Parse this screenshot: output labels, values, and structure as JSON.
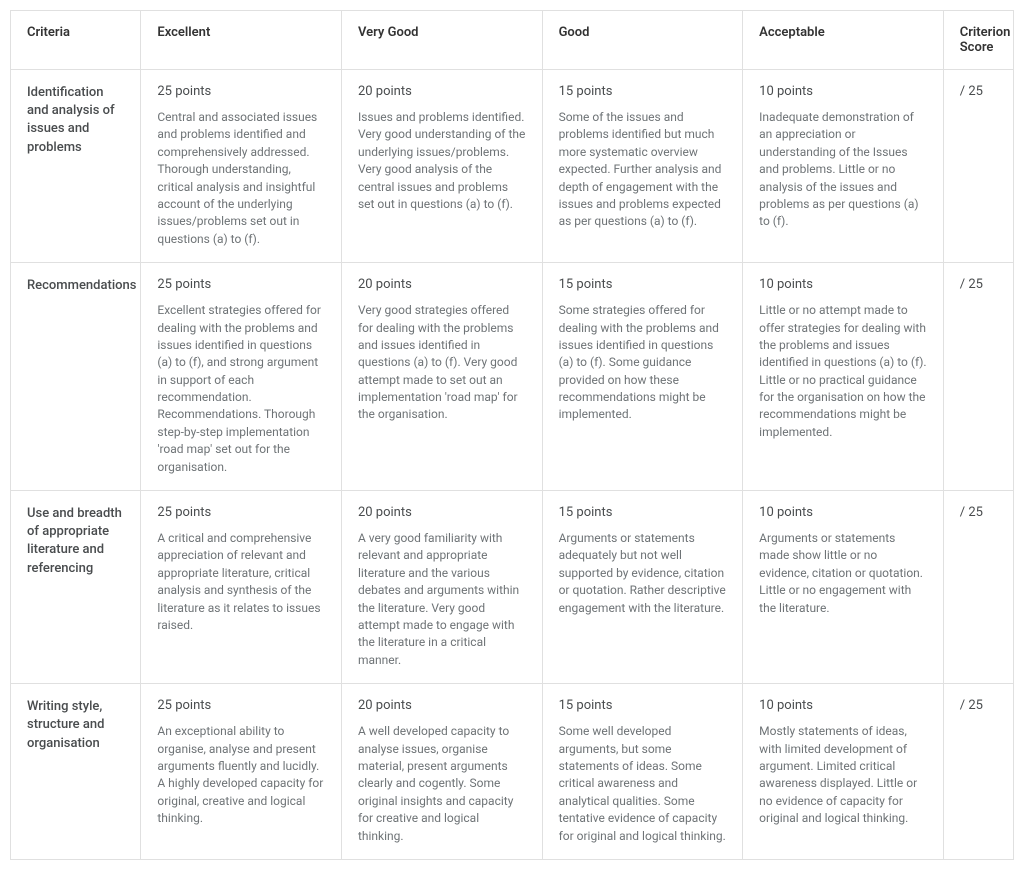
{
  "headers": {
    "criteria": "Criteria",
    "levels": [
      "Excellent",
      "Very Good",
      "Good",
      "Acceptable"
    ],
    "score": "Criterion Score"
  },
  "rows": [
    {
      "criteria": "Identification and analysis of issues and problems",
      "max": 25,
      "cells": [
        {
          "points": "25 points",
          "desc": "Central and associated issues and problems identified and comprehensively addressed. Thorough understanding, critical analysis and insightful account of the underlying issues/problems set out in questions (a) to (f)."
        },
        {
          "points": "20 points",
          "desc": "Issues and problems identified. Very good understanding of the underlying issues/problems. Very good analysis of the central issues and problems set out in questions (a) to (f)."
        },
        {
          "points": "15 points",
          "desc": "Some of the issues and problems identified but much more systematic overview expected. Further analysis and depth of engagement with the issues and problems expected as per questions (a) to (f)."
        },
        {
          "points": "10 points",
          "desc": "Inadequate demonstration of an appreciation or understanding of the Issues and problems. Little or no analysis of the issues and problems as per questions (a) to (f)."
        }
      ]
    },
    {
      "criteria": "Recommendations",
      "max": 25,
      "cells": [
        {
          "points": "25 points",
          "desc": "Excellent strategies offered for dealing with the problems and issues identified in questions (a) to (f), and strong argument in support of each recommendation. Recommendations. Thorough step-by-step implementation 'road map' set out for the organisation."
        },
        {
          "points": "20 points",
          "desc": "Very good strategies offered for dealing with the problems and issues identified in questions (a) to (f). Very good attempt made to set out an implementation 'road map' for the organisation."
        },
        {
          "points": "15 points",
          "desc": "Some strategies offered for dealing with the problems and issues identified in questions (a) to (f). Some guidance provided on how these recommendations might be implemented."
        },
        {
          "points": "10 points",
          "desc": "Little or no attempt made to offer strategies for dealing with the problems and issues identified in questions (a) to (f). Little or no practical guidance for the organisation on how the recommendations might be implemented."
        }
      ]
    },
    {
      "criteria": "Use and breadth of appropriate literature and referencing",
      "max": 25,
      "cells": [
        {
          "points": "25 points",
          "desc": "A critical and comprehensive appreciation of relevant and appropriate literature, critical analysis and synthesis of the literature as it relates to issues raised."
        },
        {
          "points": "20 points",
          "desc": "A very good familiarity with relevant and appropriate literature and the various debates and arguments within the literature. Very good attempt made to engage with the literature in a critical manner."
        },
        {
          "points": "15 points",
          "desc": "Arguments or statements adequately but not well supported by evidence, citation or quotation. Rather descriptive engagement with the literature."
        },
        {
          "points": "10 points",
          "desc": "Arguments or statements made show little or no evidence, citation or quotation. Little or no engagement with the literature."
        }
      ]
    },
    {
      "criteria": "Writing style, structure and organisation",
      "max": 25,
      "cells": [
        {
          "points": "25 points",
          "desc": "An exceptional ability to organise, analyse and present arguments fluently and lucidly. A highly developed capacity for original, creative and logical thinking."
        },
        {
          "points": "20 points",
          "desc": "A well developed capacity to analyse issues, organise material, present arguments clearly and cogently. Some original insights and capacity for creative and logical thinking."
        },
        {
          "points": "15 points",
          "desc": "Some well developed arguments, but some statements of ideas. Some critical awareness and analytical qualities. Some tentative evidence of capacity for original and logical thinking."
        },
        {
          "points": "10 points",
          "desc": "Mostly statements of ideas, with limited development of argument. Limited critical awareness displayed. Little or no evidence of capacity for original and logical thinking."
        }
      ]
    }
  ]
}
